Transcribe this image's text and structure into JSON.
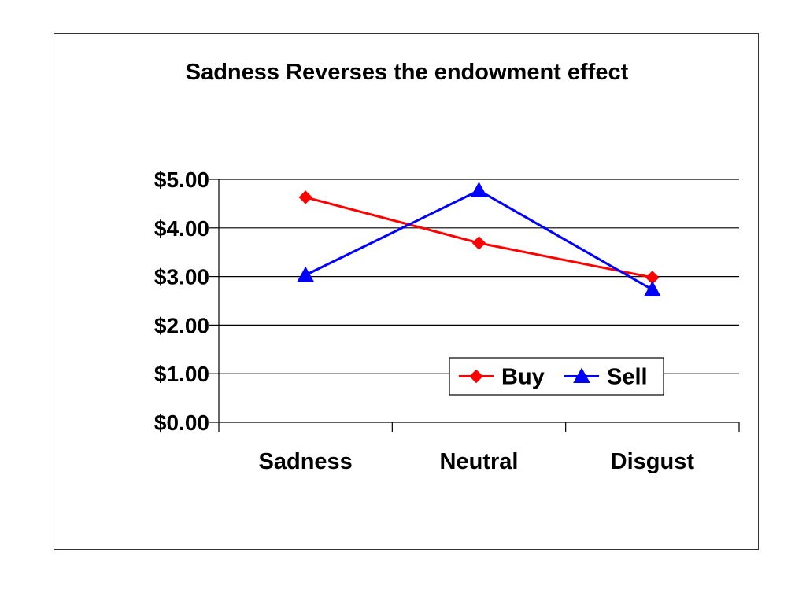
{
  "chart_data": {
    "type": "line",
    "title": "Sadness Reverses the endowment effect",
    "xlabel": "",
    "ylabel": "",
    "categories": [
      "Sadness",
      "Neutral",
      "Disgust"
    ],
    "ylim": [
      0,
      5
    ],
    "yticks": [
      "$0.00",
      "$1.00",
      "$2.00",
      "$3.00",
      "$4.00",
      "$5.00"
    ],
    "ytick_values": [
      0,
      1,
      2,
      3,
      4,
      5
    ],
    "grid": true,
    "legend_position": "bottom-right",
    "series": [
      {
        "name": "Buy",
        "values": [
          4.63,
          3.69,
          2.98
        ],
        "color": "#ff0000",
        "marker": "diamond"
      },
      {
        "name": "Sell",
        "values": [
          3.03,
          4.77,
          2.73
        ],
        "color": "#0000ff",
        "marker": "triangle"
      }
    ]
  }
}
